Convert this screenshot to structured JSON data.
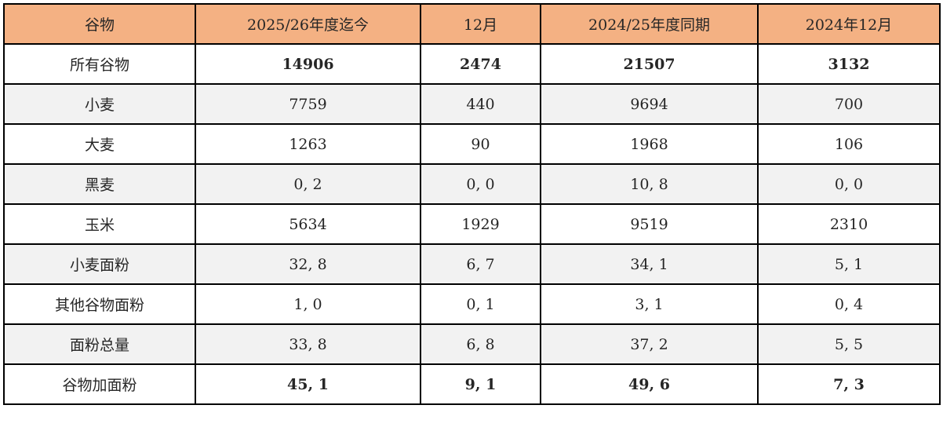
{
  "table": {
    "header": [
      "谷物",
      "2025/26年度迄今",
      "12月",
      "2024/25年度同期",
      "2024年12月"
    ],
    "rows": [
      {
        "cells": [
          "所有谷物",
          "14906",
          "2474",
          "21507",
          "3132"
        ]
      },
      {
        "cells": [
          "小麦",
          "7759",
          "440",
          "9694",
          "700"
        ]
      },
      {
        "cells": [
          "大麦",
          "1263",
          "90",
          "1968",
          "106"
        ]
      },
      {
        "cells": [
          "黑麦",
          "0, 2",
          "0, 0",
          "10, 8",
          "0, 0"
        ]
      },
      {
        "cells": [
          "玉米",
          "5634",
          "1929",
          "9519",
          "2310"
        ]
      },
      {
        "cells": [
          "小麦面粉",
          "32, 8",
          "6, 7",
          "34, 1",
          "5, 1"
        ]
      },
      {
        "cells": [
          "其他谷物面粉",
          "1, 0",
          "0, 1",
          "3, 1",
          "0, 4"
        ]
      },
      {
        "cells": [
          "面粉总量",
          "33, 8",
          "6, 8",
          "37, 2",
          "5, 5"
        ]
      },
      {
        "cells": [
          "谷物加面粉",
          "45, 1",
          "9, 1",
          "49, 6",
          "7, 3"
        ]
      }
    ]
  },
  "colors": {
    "header_bg": "#F4B183",
    "alt_row_bg": "#F2F2F2",
    "border": "#000000",
    "text": "#262626"
  },
  "chart_data": {
    "type": "table",
    "columns": [
      "谷物",
      "2025/26年度迄今",
      "12月",
      "2024/25年度同期",
      "2024年12月"
    ],
    "rows": [
      [
        "所有谷物",
        "14906",
        "2474",
        "21507",
        "3132"
      ],
      [
        "小麦",
        "7759",
        "440",
        "9694",
        "700"
      ],
      [
        "大麦",
        "1263",
        "90",
        "1968",
        "106"
      ],
      [
        "黑麦",
        "0, 2",
        "0, 0",
        "10, 8",
        "0, 0"
      ],
      [
        "玉米",
        "5634",
        "1929",
        "9519",
        "2310"
      ],
      [
        "小麦面粉",
        "32, 8",
        "6, 7",
        "34, 1",
        "5, 1"
      ],
      [
        "其他谷物面粉",
        "1, 0",
        "0, 1",
        "3, 1",
        "0, 4"
      ],
      [
        "面粉总量",
        "33, 8",
        "6, 8",
        "37, 2",
        "5, 5"
      ],
      [
        "谷物加面粉",
        "45, 1",
        "9, 1",
        "49, 6",
        "7, 3"
      ]
    ],
    "bold_rows": [
      "所有谷物",
      "谷物加面粉"
    ],
    "notes": "decimal values use comma separator; header row orange, alternating light-gray data rows"
  }
}
